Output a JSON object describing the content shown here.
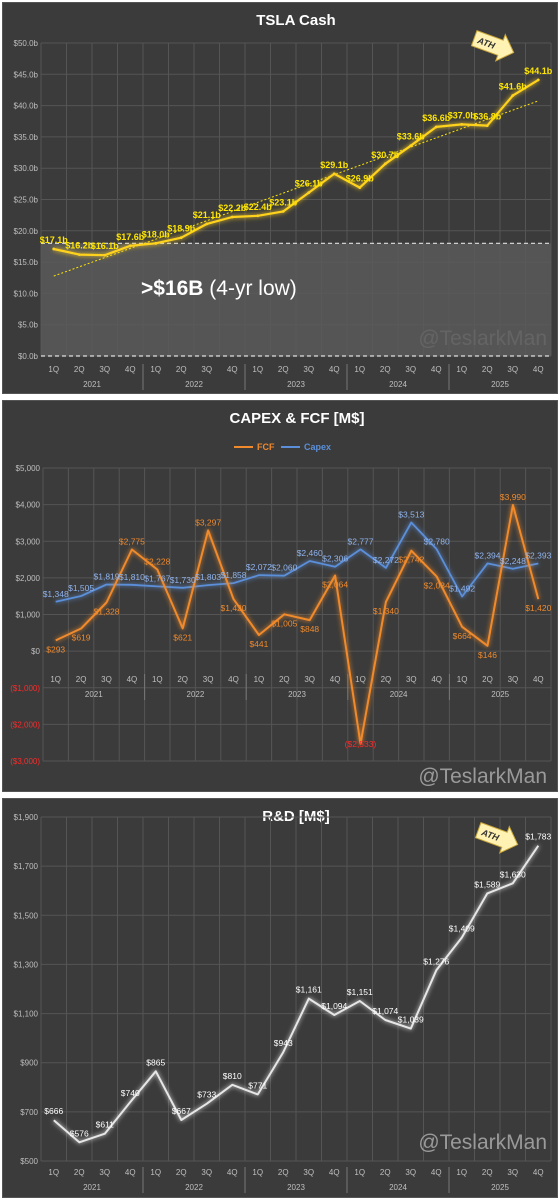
{
  "quarters": [
    "1Q",
    "2Q",
    "3Q",
    "4Q",
    "1Q",
    "2Q",
    "3Q",
    "4Q",
    "1Q",
    "2Q",
    "3Q",
    "4Q",
    "1Q",
    "2Q",
    "3Q",
    "4Q",
    "1Q",
    "2Q",
    "3Q",
    "4Q"
  ],
  "years": [
    "2021",
    "2022",
    "2023",
    "2024",
    "2025"
  ],
  "watermark": "@TeslarkMan",
  "colors": {
    "panel_bg": "#3b3b3b",
    "grid": "#555555",
    "axis_text": "#bfbfbf",
    "cash_line": "#ffd21f",
    "cash_label": "#ffe600",
    "fcf_line": "#f08a2c",
    "capex_line": "#5b8fd9",
    "negative_label": "#ff2a2a",
    "rd_line": "#e6e6e6",
    "ath_fill": "#fff2b3"
  },
  "chart_data": [
    {
      "type": "line",
      "title": "TSLA Cash",
      "categories": [
        "1Q 2021",
        "2Q 2021",
        "3Q 2021",
        "4Q 2021",
        "1Q 2022",
        "2Q 2022",
        "3Q 2022",
        "4Q 2022",
        "1Q 2023",
        "2Q 2023",
        "3Q 2023",
        "4Q 2023",
        "1Q 2024",
        "2Q 2024",
        "3Q 2024",
        "4Q 2024",
        "1Q 2025",
        "2Q 2025",
        "3Q 2025",
        "4Q 2025"
      ],
      "values": [
        17.1,
        16.2,
        16.1,
        17.6,
        18.0,
        18.9,
        21.1,
        22.2,
        22.4,
        23.1,
        26.1,
        29.1,
        26.9,
        30.7,
        33.6,
        36.6,
        37.0,
        36.8,
        41.6,
        44.1
      ],
      "data_labels": [
        "$17.1b",
        "$16.2b",
        "$16.1b",
        "$17.6b",
        "$18.0b",
        "$18.9b",
        "$21.1b",
        "$22.2b",
        "$22.4b",
        "$23.1b",
        "$26.1b",
        "$29.1b",
        "$26.9b",
        "$30.7b",
        "$33.6b",
        "$36.6b",
        "$37.0b",
        "$36.8b",
        "$41.6b",
        "$44.1b"
      ],
      "ylim": [
        0,
        50
      ],
      "yticks": [
        0,
        5,
        10,
        15,
        20,
        25,
        30,
        35,
        40,
        45,
        50
      ],
      "ytick_labels": [
        "$0.0b",
        "$5.0b",
        "$10.0b",
        "$15.0b",
        "$20.0b",
        "$25.0b",
        "$30.0b",
        "$35.0b",
        "$40.0b",
        "$45.0b",
        "$50.0b"
      ],
      "trendline": true,
      "reference_lines": [
        0,
        18
      ],
      "annotation_bold": ">$16B",
      "annotation_rest": " (4-yr low)",
      "ath_label": "ATH",
      "grid": true
    },
    {
      "type": "line",
      "title": "CAPEX & FCF [M$]",
      "legend_position": "top-center",
      "series": [
        {
          "name": "FCF",
          "values": [
            293,
            619,
            1328,
            2775,
            2228,
            621,
            3297,
            1420,
            441,
            1005,
            848,
            2064,
            -2533,
            1340,
            2742,
            2034,
            664,
            146,
            3990,
            1420
          ],
          "data_labels": [
            "$293",
            "$619",
            "$1,328",
            "$2,775",
            "$2,228",
            "$621",
            "$3,297",
            "$1,420",
            "$441",
            "$1,005",
            "$848",
            "$2,064",
            "($2,533)",
            "$1,340",
            "$2,742",
            "$2,034",
            "$664",
            "$146",
            "$3,990",
            "$1,420"
          ]
        },
        {
          "name": "Capex",
          "values": [
            1348,
            1505,
            1819,
            1810,
            1767,
            1730,
            1803,
            1858,
            2072,
            2060,
            2460,
            2306,
            2777,
            2272,
            3513,
            2780,
            1492,
            2394,
            2248,
            2393
          ],
          "data_labels": [
            "$1,348",
            "$1,505",
            "$1,819",
            "$1,810",
            "$1,767",
            "$1,730",
            "$1,803",
            "$1,858",
            "$2,072",
            "$2,060",
            "$2,460",
            "$2,306",
            "$2,777",
            "$2,272",
            "$3,513",
            "$2,780",
            "$1,492",
            "$2,394",
            "$2,248",
            "$2,393"
          ]
        }
      ],
      "ylim": [
        -3000,
        5000
      ],
      "yticks": [
        -3000,
        -2000,
        -1000,
        0,
        1000,
        2000,
        3000,
        4000,
        5000
      ],
      "ytick_labels": [
        "($3,000)",
        "($2,000)",
        "($1,000)",
        "$0",
        "$1,000",
        "$2,000",
        "$3,000",
        "$4,000",
        "$5,000"
      ],
      "grid": true
    },
    {
      "type": "line",
      "title": "R&D [M$]",
      "values": [
        666,
        576,
        611,
        740,
        865,
        667,
        733,
        810,
        771,
        943,
        1161,
        1094,
        1151,
        1074,
        1039,
        1276,
        1409,
        1589,
        1630,
        1783
      ],
      "data_labels": [
        "$666",
        "$576",
        "$611",
        "$740",
        "$865",
        "$667",
        "$733",
        "$810",
        "$771",
        "$943",
        "$1,161",
        "$1,094",
        "$1,151",
        "$1,074",
        "$1,039",
        "$1,276",
        "$1,409",
        "$1,589",
        "$1,630",
        "$1,783"
      ],
      "ylim": [
        500,
        1900
      ],
      "yticks": [
        500,
        700,
        900,
        1100,
        1300,
        1500,
        1700,
        1900
      ],
      "ytick_labels": [
        "$500",
        "$700",
        "$900",
        "$1,100",
        "$1,300",
        "$1,500",
        "$1,700",
        "$1,900"
      ],
      "ath_label": "ATH",
      "grid": true
    }
  ]
}
